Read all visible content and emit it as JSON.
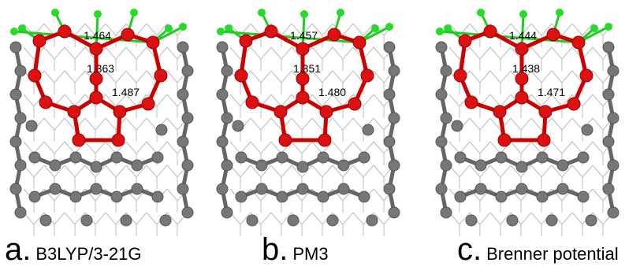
{
  "panels": [
    {
      "label": "a.",
      "method": "B3LYP/3-21G",
      "bond_lengths": [
        "1.464",
        "1.363",
        "1.487"
      ]
    },
    {
      "label": "b.",
      "method": "PM3",
      "bond_lengths": [
        "1.457",
        "1.351",
        "1.480"
      ]
    },
    {
      "label": "c.",
      "method": "Brenner potential",
      "bond_lengths": [
        "1.444",
        "1.438",
        "1.471"
      ]
    }
  ]
}
